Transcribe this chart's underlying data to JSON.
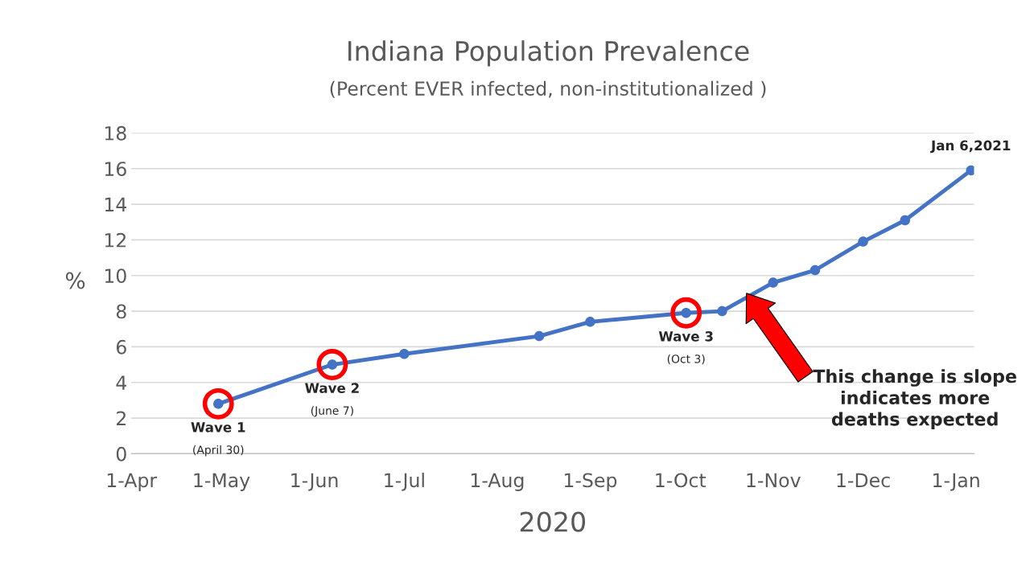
{
  "chart_data": {
    "type": "line",
    "title": "Indiana Population Prevalence",
    "subtitle": "(Percent EVER infected, non-institutionalized )",
    "xlabel": "2020",
    "ylabel": "%",
    "x": [
      "2020-04-30",
      "2020-06-07",
      "2020-07-01",
      "2020-08-15",
      "2020-09-01",
      "2020-10-03",
      "2020-10-15",
      "2020-11-01",
      "2020-11-15",
      "2020-12-01",
      "2020-12-15",
      "2021-01-06"
    ],
    "series": [
      {
        "color": "#4472c4",
        "values": [
          2.8,
          5.0,
          5.6,
          6.6,
          7.4,
          7.9,
          8.0,
          9.6,
          10.3,
          11.9,
          13.1,
          15.9
        ]
      }
    ],
    "xlim": [
      "2020-04-01",
      "2021-01-07"
    ],
    "xticks": [
      {
        "value": "2020-04-01",
        "label": "1-Apr"
      },
      {
        "value": "2020-05-01",
        "label": "1-May"
      },
      {
        "value": "2020-06-01",
        "label": "1-Jun"
      },
      {
        "value": "2020-07-01",
        "label": "1-Jul"
      },
      {
        "value": "2020-08-01",
        "label": "1-Aug"
      },
      {
        "value": "2020-09-01",
        "label": "1-Sep"
      },
      {
        "value": "2020-10-01",
        "label": "1-Oct"
      },
      {
        "value": "2020-11-01",
        "label": "1-Nov"
      },
      {
        "value": "2020-12-01",
        "label": "1-Dec"
      },
      {
        "value": "2021-01-01",
        "label": "1-Jan"
      }
    ],
    "ylim": [
      0,
      18
    ],
    "yticks": [
      0,
      2,
      4,
      6,
      8,
      10,
      12,
      14,
      16,
      18
    ],
    "grid": "y",
    "marker": "circle",
    "line_style": "solid",
    "legend": false,
    "annotations": [
      {
        "text": "Wave 1",
        "x": "2020-04-30",
        "y": 2.8
      },
      "(April 30)",
      {
        "text": "Wave 2",
        "x": "2020-06-07",
        "y": 5.0
      },
      "(June 7)",
      {
        "text": "Wave 3",
        "x": "2020-10-03",
        "y": 7.9
      },
      "(Oct 3)",
      {
        "text": "Jan 6,2021",
        "x": "2021-01-06",
        "y": 15.9
      },
      "This change is slope\nindicates more\ndeaths expected"
    ]
  }
}
